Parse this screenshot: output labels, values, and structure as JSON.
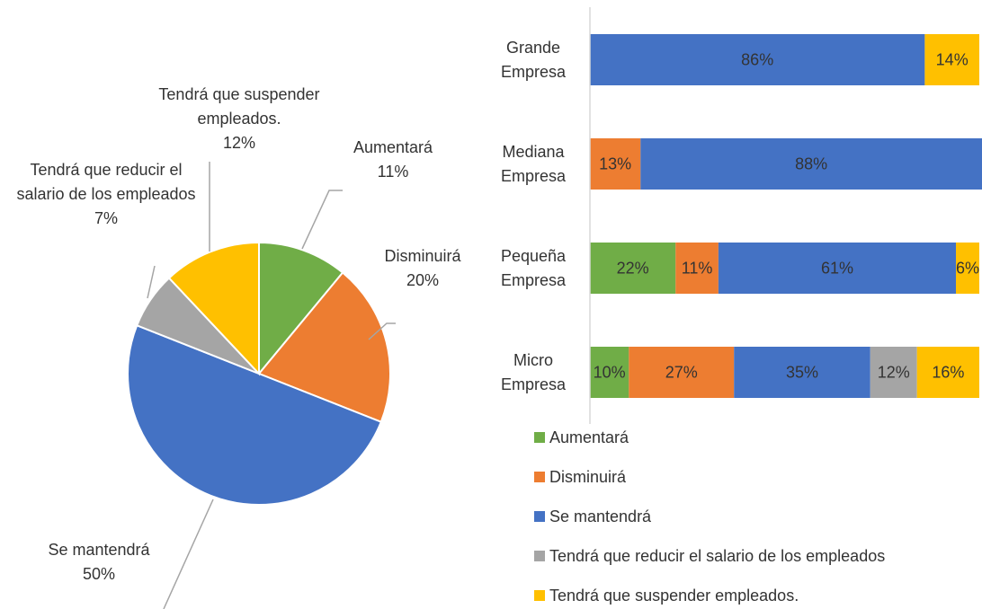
{
  "chart_data": [
    {
      "type": "pie",
      "categories": [
        "Aumentará",
        "Disminuirá",
        "Se mantendrá",
        "Tendrá que reducir el salario de los empleados",
        "Tendrá que suspender empleados."
      ],
      "values": [
        11,
        20,
        50,
        7,
        12
      ],
      "value_labels": [
        "11%",
        "20%",
        "50%",
        "7%",
        "12%"
      ],
      "colors": [
        "#70ad47",
        "#ed7d31",
        "#4472c4",
        "#a5a5a5",
        "#ffc000"
      ]
    },
    {
      "type": "stacked-bar-horizontal",
      "categories": [
        "Grande Empresa",
        "Mediana Empresa",
        "Pequeña Empresa",
        "Micro Empresa"
      ],
      "xlim": [
        0,
        100
      ],
      "legend": "bottom",
      "series": [
        {
          "name": "Aumentará",
          "color": "#70ad47",
          "values": [
            null,
            null,
            22,
            10
          ],
          "value_labels": [
            null,
            null,
            "22%",
            "10%"
          ]
        },
        {
          "name": "Disminuirá",
          "color": "#ed7d31",
          "values": [
            null,
            13,
            11,
            27
          ],
          "value_labels": [
            null,
            "13%",
            "11%",
            "27%"
          ]
        },
        {
          "name": "Se mantendrá",
          "color": "#4472c4",
          "values": [
            86,
            88,
            61,
            35
          ],
          "value_labels": [
            "86%",
            "88%",
            "61%",
            "35%"
          ]
        },
        {
          "name": "Tendrá que reducir el salario de los empleados",
          "color": "#a5a5a5",
          "values": [
            null,
            null,
            null,
            12
          ],
          "value_labels": [
            null,
            null,
            null,
            "12%"
          ]
        },
        {
          "name": "Tendrá que suspender empleados.",
          "color": "#ffc000",
          "values": [
            14,
            null,
            6,
            16
          ],
          "value_labels": [
            "14%",
            null,
            "6%",
            "16%"
          ]
        }
      ]
    }
  ]
}
